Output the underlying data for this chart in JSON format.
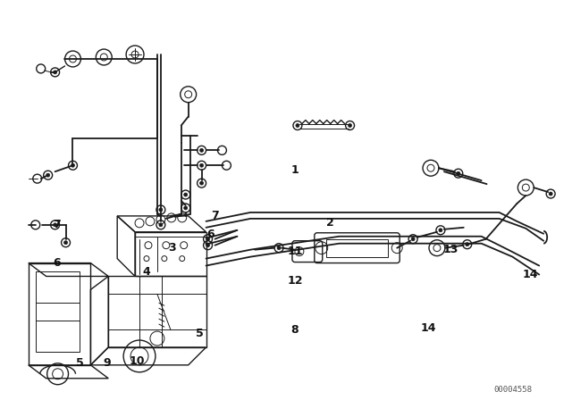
{
  "bg_color": "#ffffff",
  "line_color": "#1a1a1a",
  "label_color": "#111111",
  "watermark": "00004558",
  "figsize": [
    6.4,
    4.48
  ],
  "dpi": 100,
  "pipe_lw": 1.3,
  "thin_lw": 0.7,
  "main_lw": 1.0,
  "labels": [
    [
      "5",
      88,
      408
    ],
    [
      "9",
      118,
      408
    ],
    [
      "10",
      152,
      406
    ],
    [
      "5",
      223,
      374
    ],
    [
      "4",
      163,
      305
    ],
    [
      "3",
      192,
      278
    ],
    [
      "6",
      62,
      295
    ],
    [
      "7",
      62,
      252
    ],
    [
      "6",
      235,
      263
    ],
    [
      "7",
      240,
      242
    ],
    [
      "8",
      330,
      370
    ],
    [
      "12",
      330,
      315
    ],
    [
      "11",
      330,
      282
    ],
    [
      "2",
      370,
      250
    ],
    [
      "1",
      330,
      190
    ],
    [
      "13",
      505,
      280
    ],
    [
      "14",
      480,
      368
    ],
    [
      "14",
      595,
      308
    ]
  ]
}
